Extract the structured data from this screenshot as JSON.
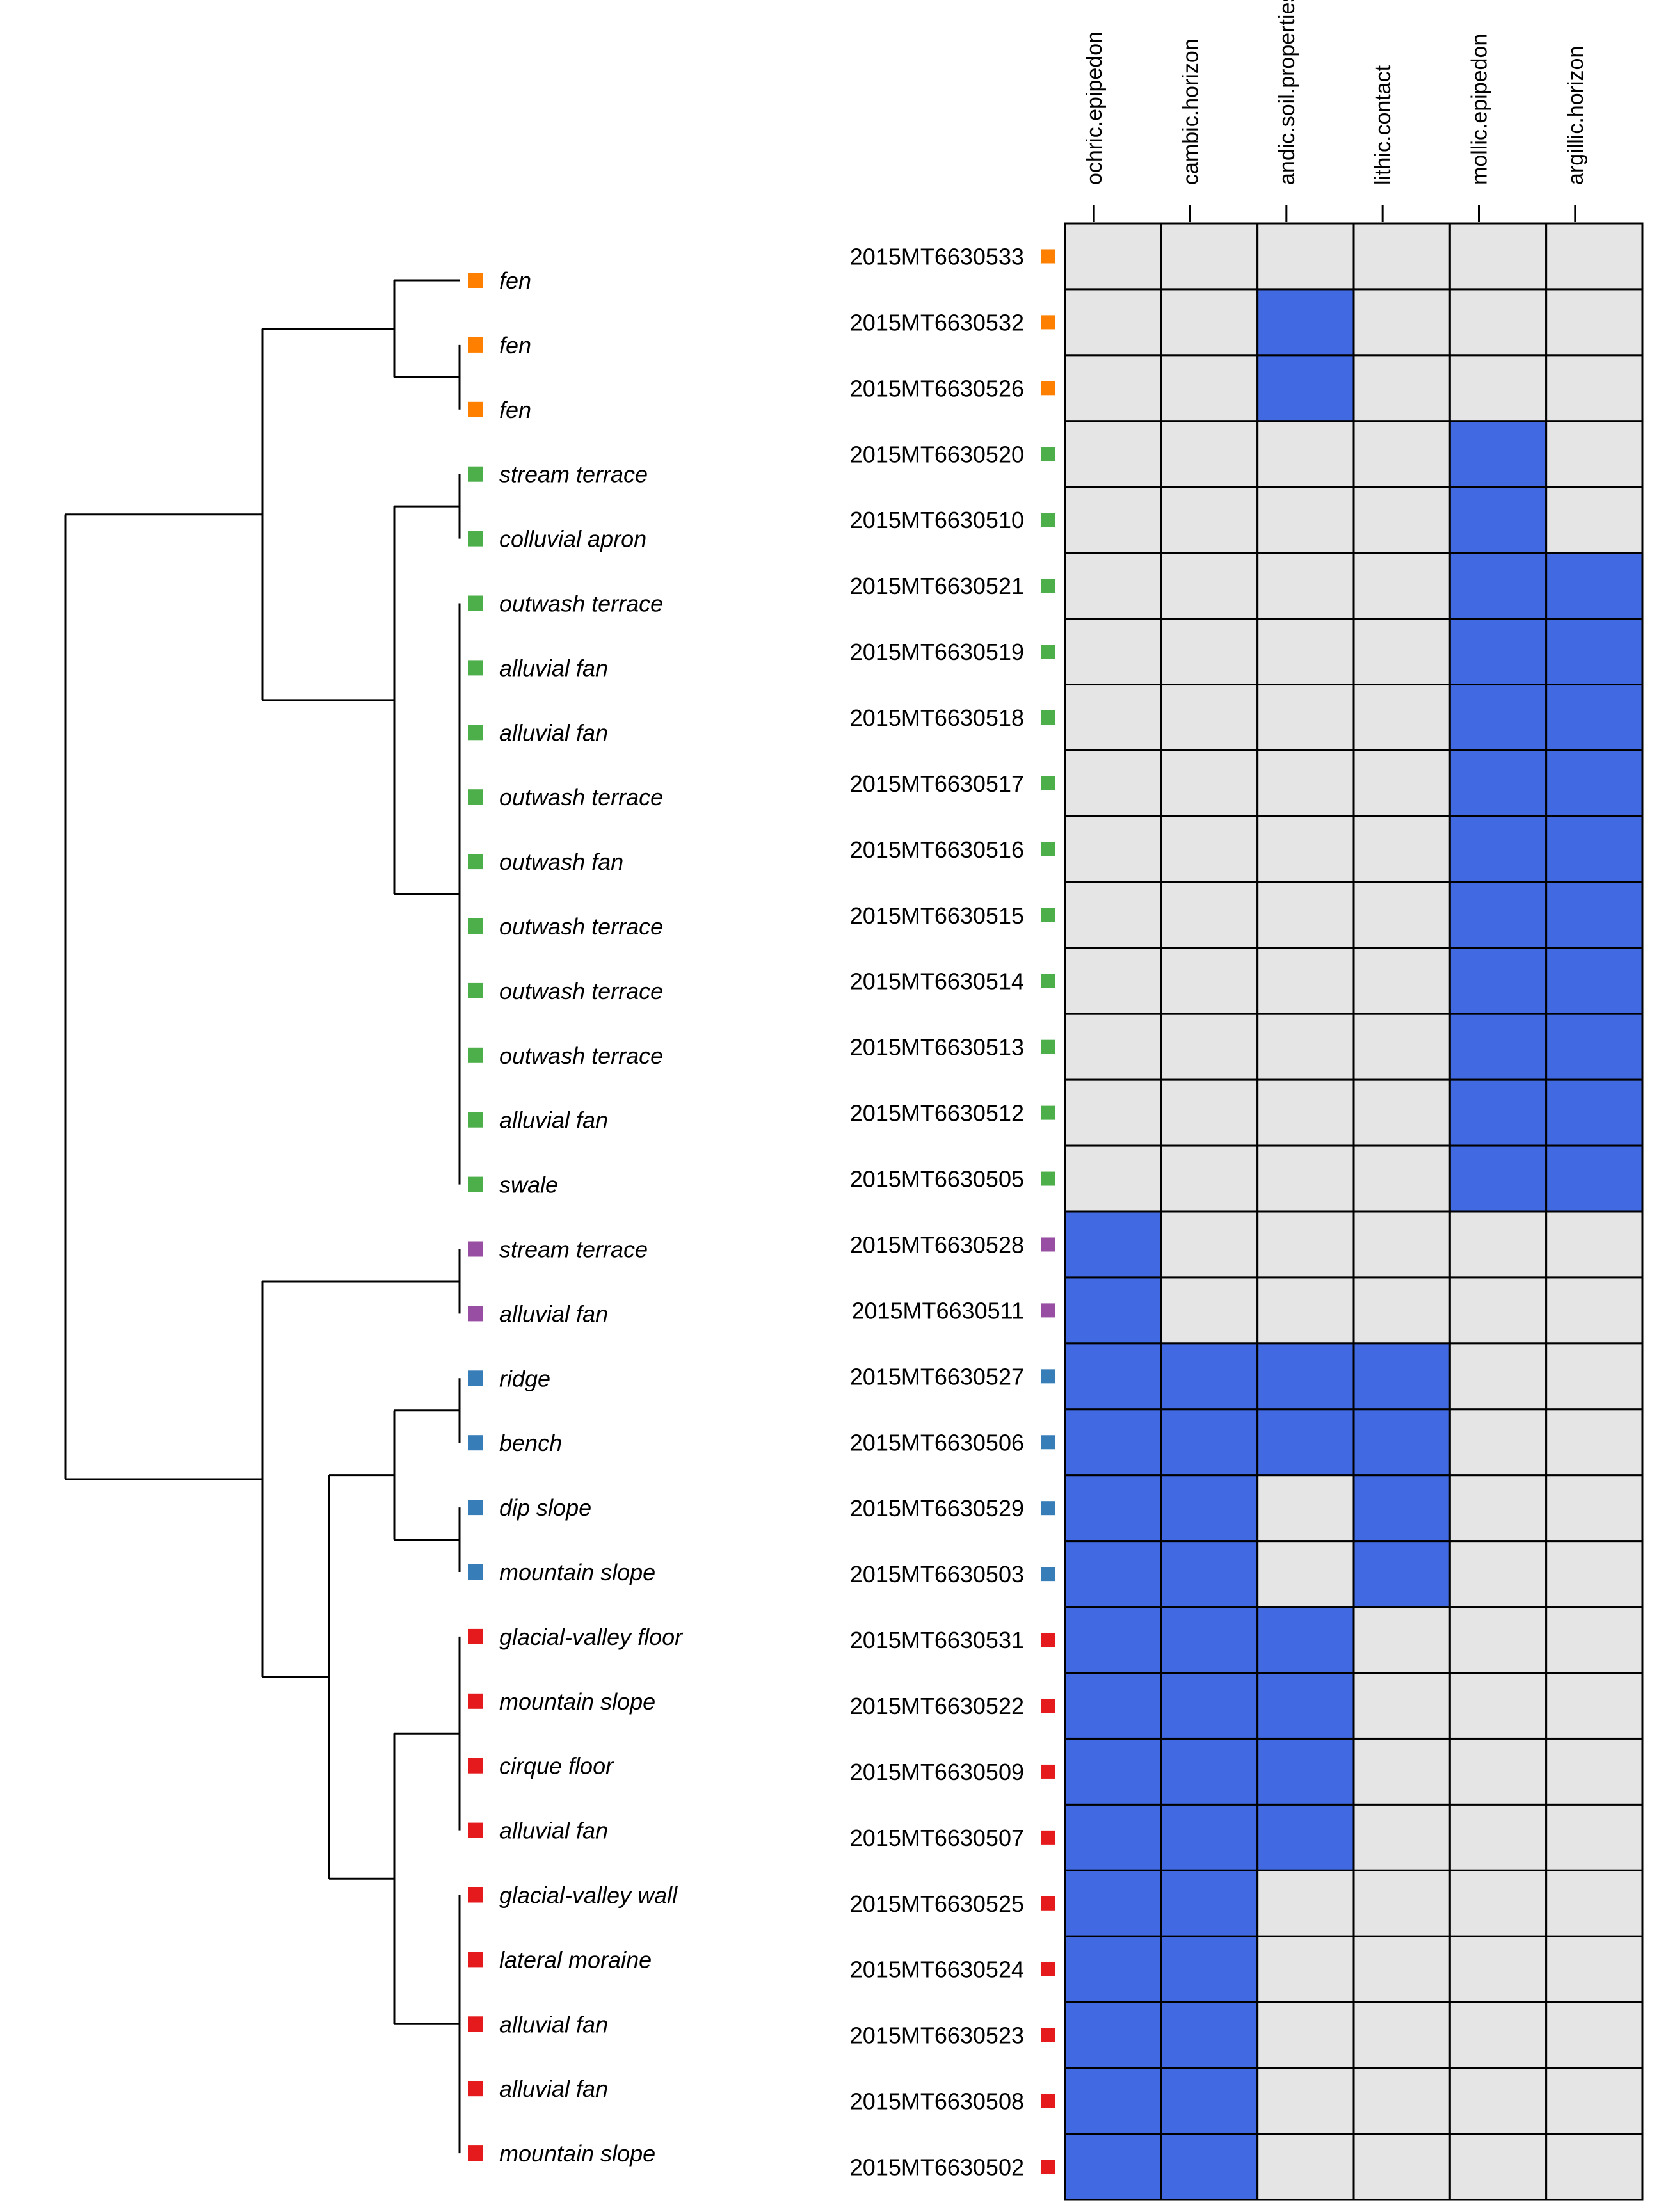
{
  "chart_data": {
    "type": "heatmap",
    "title": "",
    "columns": [
      "ochric.epipedon",
      "cambic.horizon",
      "andic.soil.properties",
      "lithic.contact",
      "mollic.epipedon",
      "argillic.horizon"
    ],
    "colors": {
      "present": "#4169E1",
      "absent": "#E5E5E5",
      "border": "#000000",
      "groups": {
        "orange": "#FF7F00",
        "green": "#4DAF4A",
        "purple": "#984EA3",
        "blue": "#377EB8",
        "red": "#E41A1C"
      }
    },
    "rows": [
      {
        "sample": "2015MT6630533",
        "landform": "fen",
        "group": "orange",
        "values": [
          0,
          0,
          0,
          0,
          0,
          0
        ]
      },
      {
        "sample": "2015MT6630532",
        "landform": "fen",
        "group": "orange",
        "values": [
          0,
          0,
          1,
          0,
          0,
          0
        ]
      },
      {
        "sample": "2015MT6630526",
        "landform": "fen",
        "group": "orange",
        "values": [
          0,
          0,
          1,
          0,
          0,
          0
        ]
      },
      {
        "sample": "2015MT6630520",
        "landform": "stream terrace",
        "group": "green",
        "values": [
          0,
          0,
          0,
          0,
          1,
          0
        ]
      },
      {
        "sample": "2015MT6630510",
        "landform": "colluvial apron",
        "group": "green",
        "values": [
          0,
          0,
          0,
          0,
          1,
          0
        ]
      },
      {
        "sample": "2015MT6630521",
        "landform": "outwash terrace",
        "group": "green",
        "values": [
          0,
          0,
          0,
          0,
          1,
          1
        ]
      },
      {
        "sample": "2015MT6630519",
        "landform": "alluvial fan",
        "group": "green",
        "values": [
          0,
          0,
          0,
          0,
          1,
          1
        ]
      },
      {
        "sample": "2015MT6630518",
        "landform": "alluvial fan",
        "group": "green",
        "values": [
          0,
          0,
          0,
          0,
          1,
          1
        ]
      },
      {
        "sample": "2015MT6630517",
        "landform": "outwash terrace",
        "group": "green",
        "values": [
          0,
          0,
          0,
          0,
          1,
          1
        ]
      },
      {
        "sample": "2015MT6630516",
        "landform": "outwash fan",
        "group": "green",
        "values": [
          0,
          0,
          0,
          0,
          1,
          1
        ]
      },
      {
        "sample": "2015MT6630515",
        "landform": "outwash terrace",
        "group": "green",
        "values": [
          0,
          0,
          0,
          0,
          1,
          1
        ]
      },
      {
        "sample": "2015MT6630514",
        "landform": "outwash terrace",
        "group": "green",
        "values": [
          0,
          0,
          0,
          0,
          1,
          1
        ]
      },
      {
        "sample": "2015MT6630513",
        "landform": "outwash terrace",
        "group": "green",
        "values": [
          0,
          0,
          0,
          0,
          1,
          1
        ]
      },
      {
        "sample": "2015MT6630512",
        "landform": "alluvial fan",
        "group": "green",
        "values": [
          0,
          0,
          0,
          0,
          1,
          1
        ]
      },
      {
        "sample": "2015MT6630505",
        "landform": "swale",
        "group": "green",
        "values": [
          0,
          0,
          0,
          0,
          1,
          1
        ]
      },
      {
        "sample": "2015MT6630528",
        "landform": "stream terrace",
        "group": "purple",
        "values": [
          1,
          0,
          0,
          0,
          0,
          0
        ]
      },
      {
        "sample": "2015MT6630511",
        "landform": "alluvial fan",
        "group": "purple",
        "values": [
          1,
          0,
          0,
          0,
          0,
          0
        ]
      },
      {
        "sample": "2015MT6630527",
        "landform": "ridge",
        "group": "blue",
        "values": [
          1,
          1,
          1,
          1,
          0,
          0
        ]
      },
      {
        "sample": "2015MT6630506",
        "landform": "bench",
        "group": "blue",
        "values": [
          1,
          1,
          1,
          1,
          0,
          0
        ]
      },
      {
        "sample": "2015MT6630529",
        "landform": "dip slope",
        "group": "blue",
        "values": [
          1,
          1,
          0,
          1,
          0,
          0
        ]
      },
      {
        "sample": "2015MT6630503",
        "landform": "mountain slope",
        "group": "blue",
        "values": [
          1,
          1,
          0,
          1,
          0,
          0
        ]
      },
      {
        "sample": "2015MT6630531",
        "landform": "glacial-valley floor",
        "group": "red",
        "values": [
          1,
          1,
          1,
          0,
          0,
          0
        ]
      },
      {
        "sample": "2015MT6630522",
        "landform": "mountain slope",
        "group": "red",
        "values": [
          1,
          1,
          1,
          0,
          0,
          0
        ]
      },
      {
        "sample": "2015MT6630509",
        "landform": "cirque floor",
        "group": "red",
        "values": [
          1,
          1,
          1,
          0,
          0,
          0
        ]
      },
      {
        "sample": "2015MT6630507",
        "landform": "alluvial fan",
        "group": "red",
        "values": [
          1,
          1,
          1,
          0,
          0,
          0
        ]
      },
      {
        "sample": "2015MT6630525",
        "landform": "glacial-valley wall",
        "group": "red",
        "values": [
          1,
          1,
          0,
          0,
          0,
          0
        ]
      },
      {
        "sample": "2015MT6630524",
        "landform": "lateral moraine",
        "group": "red",
        "values": [
          1,
          1,
          0,
          0,
          0,
          0
        ]
      },
      {
        "sample": "2015MT6630523",
        "landform": "alluvial fan",
        "group": "red",
        "values": [
          1,
          1,
          0,
          0,
          0,
          0
        ]
      },
      {
        "sample": "2015MT6630508",
        "landform": "alluvial fan",
        "group": "red",
        "values": [
          1,
          1,
          0,
          0,
          0,
          0
        ]
      },
      {
        "sample": "2015MT6630502",
        "landform": "mountain slope",
        "group": "red",
        "values": [
          1,
          1,
          0,
          0,
          0,
          0
        ]
      }
    ],
    "dendrogram": {
      "leaf_order": "rows",
      "merges": [
        [
          "leaf:1",
          "leaf:2",
          0
        ],
        [
          "leaf:0",
          "n0",
          0.18
        ],
        [
          "leaf:3",
          "leaf:4",
          0
        ],
        [
          "leaf:5",
          "leaf:6",
          0
        ],
        [
          "n3",
          "leaf:7",
          0
        ],
        [
          "n4",
          "leaf:8",
          0
        ],
        [
          "n5",
          "leaf:9",
          0
        ],
        [
          "n6",
          "leaf:10",
          0
        ],
        [
          "n7",
          "leaf:11",
          0
        ],
        [
          "n8",
          "leaf:12",
          0
        ],
        [
          "n9",
          "leaf:13",
          0
        ],
        [
          "n10",
          "leaf:14",
          0
        ],
        [
          "n2",
          "n11",
          0.18
        ],
        [
          "n1",
          "n12",
          0.39
        ],
        [
          "leaf:15",
          "leaf:16",
          0
        ],
        [
          "leaf:17",
          "leaf:18",
          0
        ],
        [
          "leaf:19",
          "leaf:20",
          0
        ],
        [
          "n15",
          "n16",
          0.18
        ],
        [
          "leaf:21",
          "leaf:22",
          0
        ],
        [
          "leaf:23",
          "leaf:24",
          0
        ],
        [
          "n18",
          "n19",
          0
        ],
        [
          "leaf:25",
          "leaf:26",
          0
        ],
        [
          "leaf:27",
          "leaf:28",
          0
        ],
        [
          "leaf:29",
          "n22",
          0
        ],
        [
          "n21",
          "n23",
          0
        ],
        [
          "n24",
          "n24b",
          0
        ],
        [
          "n20",
          "n25",
          0.18
        ],
        [
          "n17",
          "n26",
          0.37
        ],
        [
          "n14",
          "n27",
          0.55
        ],
        [
          "n13",
          "n28",
          0.55
        ],
        [
          "n29",
          "n29",
          1.0
        ]
      ]
    }
  }
}
